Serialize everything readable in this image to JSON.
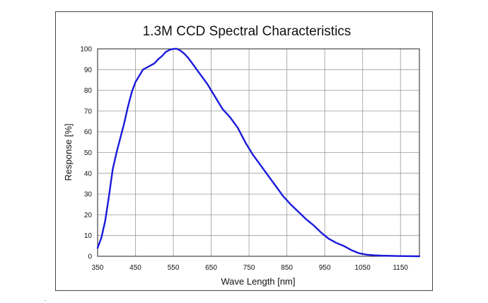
{
  "chart_data": {
    "type": "line",
    "title": "1.3M CCD Spectral Characteristics",
    "xlabel": "Wave Length [nm]",
    "ylabel": "Response [%]",
    "xlim": [
      350,
      1200
    ],
    "ylim": [
      0,
      100
    ],
    "x_ticks": [
      350,
      450,
      550,
      650,
      750,
      850,
      950,
      1050,
      1150
    ],
    "y_ticks": [
      0,
      10,
      20,
      30,
      40,
      50,
      60,
      70,
      80,
      90,
      100
    ],
    "grid": true,
    "line_color": "#1a1adb",
    "series": [
      {
        "x": [
          350,
          360,
          370,
          380,
          390,
          400,
          410,
          420,
          430,
          440,
          450,
          460,
          470,
          480,
          490,
          500,
          510,
          520,
          530,
          540,
          550,
          560,
          570,
          580,
          590,
          600,
          620,
          640,
          660,
          680,
          700,
          720,
          740,
          760,
          780,
          800,
          820,
          840,
          860,
          880,
          900,
          920,
          940,
          960,
          980,
          1000,
          1020,
          1040,
          1060,
          1080,
          1100,
          1150,
          1200
        ],
        "y": [
          4,
          9,
          17,
          29,
          42,
          50,
          57,
          64,
          72,
          79,
          84,
          87,
          90,
          91,
          92,
          93,
          95,
          96.5,
          98.5,
          99.5,
          100,
          100,
          99,
          97.5,
          95.5,
          93,
          88,
          83,
          77,
          71,
          67,
          62,
          55,
          49,
          44,
          39,
          34,
          29,
          25,
          21.5,
          18,
          15,
          11.5,
          8.5,
          6.5,
          5,
          3,
          1.5,
          0.8,
          0.5,
          0.3,
          0.1,
          0
        ]
      }
    ]
  }
}
